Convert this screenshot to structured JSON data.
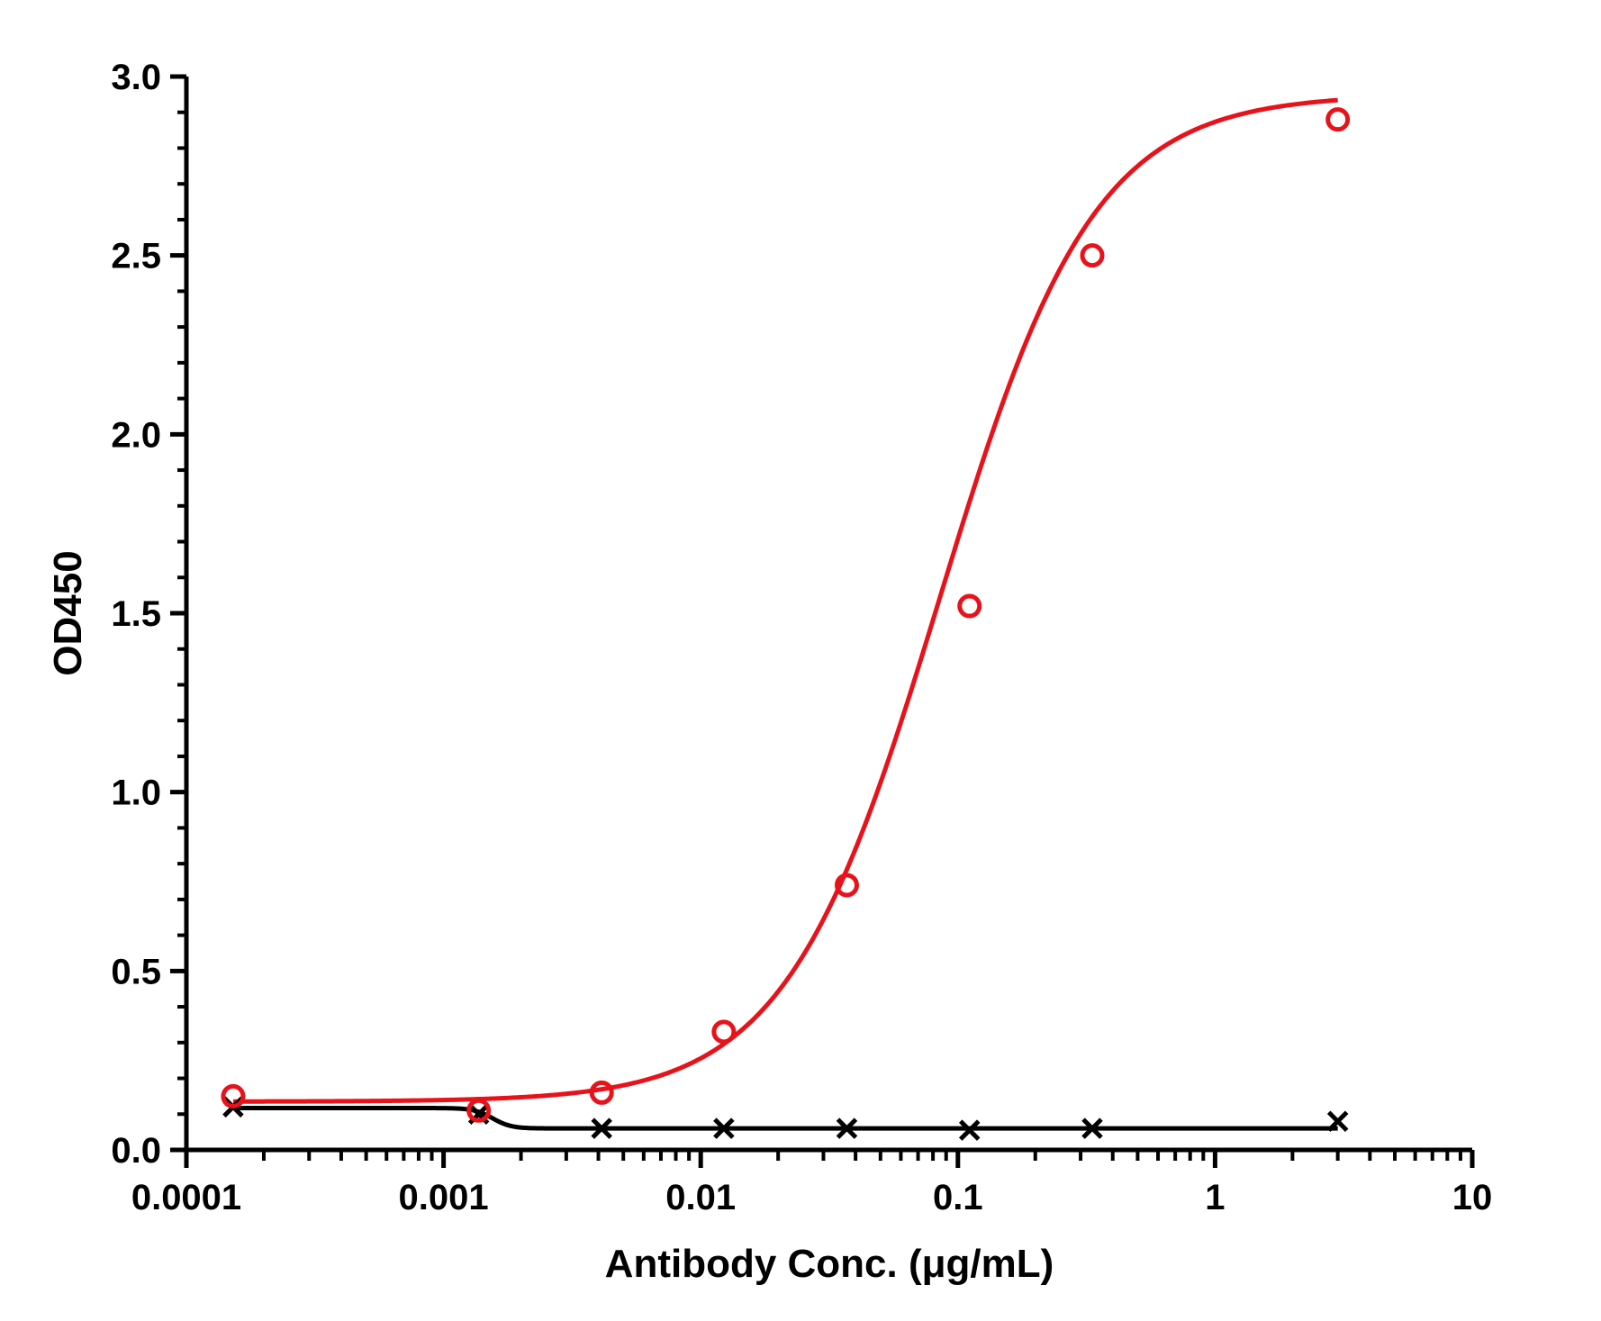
{
  "chart_data": {
    "type": "scatter",
    "title": "",
    "xlabel": "Antibody Conc. (μg/mL)",
    "ylabel": "OD450",
    "x_scale": "log",
    "xlim": [
      0.0001,
      10
    ],
    "ylim": [
      0,
      3.0
    ],
    "x_ticks": [
      {
        "value": 0.0001,
        "label": "0.0001"
      },
      {
        "value": 0.001,
        "label": "0.001"
      },
      {
        "value": 0.01,
        "label": "0.01"
      },
      {
        "value": 0.1,
        "label": "0.1"
      },
      {
        "value": 1,
        "label": "1"
      },
      {
        "value": 10,
        "label": "10"
      }
    ],
    "y_ticks": [
      {
        "value": 0,
        "label": "0.0"
      },
      {
        "value": 0.5,
        "label": "0.5"
      },
      {
        "value": 1.0,
        "label": "1.0"
      },
      {
        "value": 1.5,
        "label": "1.5"
      },
      {
        "value": 2.0,
        "label": "2.0"
      },
      {
        "value": 2.5,
        "label": "2.5"
      },
      {
        "value": 3.0,
        "label": "3.0"
      }
    ],
    "grid": false,
    "legend": "none",
    "series": [
      {
        "color": "#e8121a",
        "marker": "open-circle",
        "points": [
          {
            "x": 0.000152,
            "y": 0.15
          },
          {
            "x": 0.00137,
            "y": 0.11
          },
          {
            "x": 0.00412,
            "y": 0.16
          },
          {
            "x": 0.0123,
            "y": 0.33
          },
          {
            "x": 0.037,
            "y": 0.74
          },
          {
            "x": 0.111,
            "y": 1.52
          },
          {
            "x": 0.333,
            "y": 2.5
          },
          {
            "x": 3.0,
            "y": 2.88
          }
        ],
        "fit": {
          "bottom": 0.135,
          "top": 2.95,
          "ec50": 0.085,
          "hill": 1.45
        }
      },
      {
        "color": "#000000",
        "marker": "x",
        "points": [
          {
            "x": 0.000152,
            "y": 0.12
          },
          {
            "x": 0.00137,
            "y": 0.1
          },
          {
            "x": 0.00412,
            "y": 0.06
          },
          {
            "x": 0.0123,
            "y": 0.06
          },
          {
            "x": 0.037,
            "y": 0.06
          },
          {
            "x": 0.111,
            "y": 0.055
          },
          {
            "x": 0.333,
            "y": 0.06
          },
          {
            "x": 3.0,
            "y": 0.08
          }
        ],
        "fit": {
          "bottom": 0.117,
          "top": 0.06,
          "ec50": 0.00155,
          "hill": 12
        }
      }
    ]
  }
}
